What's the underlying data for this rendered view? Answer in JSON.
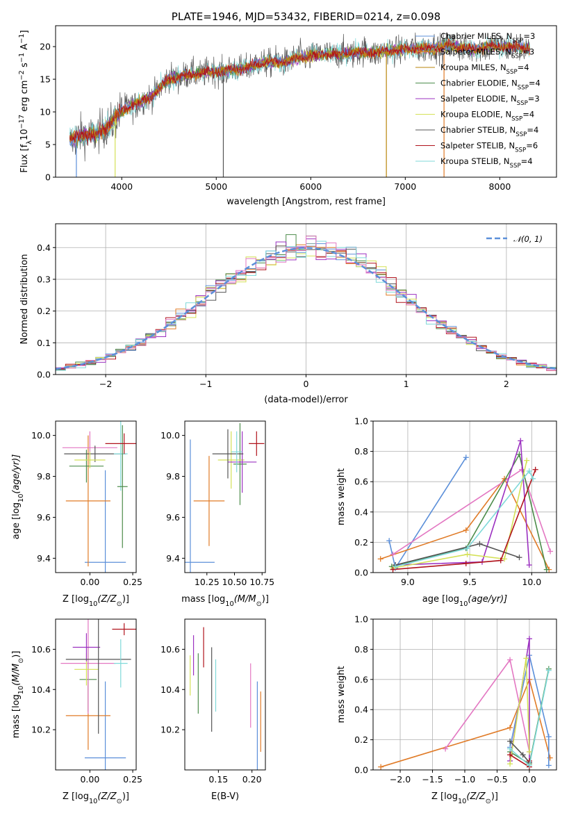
{
  "chart_data": [
    {
      "id": "spectrum",
      "type": "line",
      "title": "PLATE=1946, MJD=53432, FIBERID=0214, z=0.098",
      "xlabel": "wavelength [Angstrom, rest frame]",
      "ylabel_parts": [
        "Flux [f",
        "λ",
        "10",
        "−17",
        " erg cm",
        "−2",
        " s",
        "−1",
        " A",
        "−1",
        "]"
      ],
      "xlim": [
        3300,
        8600
      ],
      "ylim": [
        0,
        23.2
      ],
      "xticks": [
        4000,
        5000,
        6000,
        7000,
        8000
      ],
      "yticks": [
        0,
        5,
        10,
        15,
        20
      ],
      "grid": false,
      "legend_position": "top-right",
      "anchors_x": [
        3450,
        3600,
        3750,
        3900,
        4000,
        4100,
        4300,
        4500,
        4700,
        4900,
        5100,
        5300,
        5500,
        5700,
        5900,
        6100,
        6300,
        6500,
        6700,
        6900,
        7100,
        7300,
        7500,
        7700,
        7900,
        8100,
        8300
      ],
      "anchors_y": [
        5.5,
        6.5,
        6.6,
        8.5,
        10.2,
        10.9,
        12.2,
        15.1,
        15.6,
        16.1,
        16.3,
        16.7,
        17.6,
        17.6,
        18.4,
        18.8,
        18.8,
        19.2,
        19.1,
        19.5,
        19.7,
        19.8,
        20.2,
        19.5,
        20.1,
        19.9,
        19.8
      ],
      "dips": [
        {
          "x": 3520,
          "y": 0
        },
        {
          "x": 3930,
          "y": 0
        },
        {
          "x": 5075,
          "y": 0
        },
        {
          "x": 6800,
          "y": 0
        },
        {
          "x": 7410,
          "y": 0
        }
      ],
      "series": [
        {
          "name_parts": [
            "Chabrier MILES, N",
            "SSP",
            "=3"
          ],
          "color": "#5b8fd9"
        },
        {
          "name_parts": [
            "Salpeter MILES, N",
            "SSP",
            "=3"
          ],
          "color": "#e07b27"
        },
        {
          "name_parts": [
            "Kroupa MILES, N",
            "SSP",
            "=4"
          ],
          "color": "#b8860b"
        },
        {
          "name_parts": [
            "Chabrier ELODIE, N",
            "SSP",
            "=4"
          ],
          "color": "#4c8c4a"
        },
        {
          "name_parts": [
            "Salpeter ELODIE, N",
            "SSP",
            "=3"
          ],
          "color": "#9b30c0"
        },
        {
          "name_parts": [
            "Kroupa ELODIE, N",
            "SSP",
            "=4"
          ],
          "color": "#d4e157"
        },
        {
          "name_parts": [
            "Chabrier STELIB, N",
            "SSP",
            "=4"
          ],
          "color": "#555555"
        },
        {
          "name_parts": [
            "Salpeter STELIB, N",
            "SSP",
            "=6"
          ],
          "color": "#b0121b"
        },
        {
          "name_parts": [
            "Kroupa STELIB, N",
            "SSP",
            "=4"
          ],
          "color": "#7fd9d9"
        }
      ]
    },
    {
      "id": "residuals",
      "type": "histogram",
      "xlabel": "(data-model)/error",
      "ylabel": "Normed distribution",
      "xlim": [
        -2.5,
        2.5
      ],
      "ylim": [
        0,
        0.475
      ],
      "xticks": [
        -2,
        -1,
        0,
        1,
        2
      ],
      "yticks": [
        0.0,
        0.1,
        0.2,
        0.3,
        0.4
      ],
      "grid": true,
      "legend_position": "top-right",
      "legend_label": "𝒩(0, 1)",
      "bin_width": 0.1,
      "series_colors": [
        "#5b8fd9",
        "#e07b27",
        "#4c8c4a",
        "#9b30c0",
        "#d4e157",
        "#555555",
        "#b0121b",
        "#7fd9d9",
        "#e377c2"
      ],
      "gaussian_color": "#5b8fd9"
    },
    {
      "id": "age-vs-Z",
      "type": "scatter",
      "xlabel_parts": [
        "Z [log",
        "10",
        "(Z/Z",
        "⊙",
        ")]"
      ],
      "ylabel_parts": [
        "age  [log",
        "10",
        "(age/yr)]"
      ],
      "xlim": [
        -0.2,
        0.27
      ],
      "ylim": [
        9.33,
        10.07
      ],
      "xticks": [
        "0.00",
        "0.25"
      ],
      "xtick_values": [
        0.0,
        0.25
      ],
      "yticks": [
        "9.4",
        "9.6",
        "9.8",
        "10.0"
      ],
      "ytick_values": [
        9.4,
        9.6,
        9.8,
        10.0
      ],
      "points": [
        {
          "x": 0.09,
          "y": 9.38,
          "xerr": 0.12,
          "yerr": 0.45,
          "color": "#5b8fd9"
        },
        {
          "x": -0.01,
          "y": 9.68,
          "xerr": 0.13,
          "yerr": 0.32,
          "color": "#e07b27"
        },
        {
          "x": -0.02,
          "y": 9.85,
          "xerr": 0.1,
          "yerr": 0.08,
          "color": "#4c8c4a"
        },
        {
          "x": 0.0,
          "y": 9.94,
          "xerr": 0.16,
          "yerr": 0.08,
          "color": "#e377c2"
        },
        {
          "x": 0.03,
          "y": 9.91,
          "xerr": 0.18,
          "yerr": 0.04,
          "color": "#555555"
        },
        {
          "x": 0.0,
          "y": 9.88,
          "xerr": 0.09,
          "yerr": 0.04,
          "color": "#d4e157"
        },
        {
          "x": 0.18,
          "y": 9.91,
          "xerr": 0.04,
          "yerr": 0.18,
          "color": "#7fd9d9"
        },
        {
          "x": 0.19,
          "y": 9.75,
          "xerr": 0.03,
          "yerr": 0.3,
          "color": "#4c8c4a"
        },
        {
          "x": 0.2,
          "y": 9.96,
          "xerr": 0.11,
          "yerr": 0.05,
          "color": "#b0121b"
        }
      ]
    },
    {
      "id": "age-vs-mass",
      "type": "scatter",
      "xlabel_parts": [
        "mass [log",
        "10",
        "(M/M",
        "⊙",
        ")]"
      ],
      "xlim": [
        10.05,
        10.78
      ],
      "ylim": [
        9.33,
        10.07
      ],
      "xticks": [
        "10.25",
        "10.50",
        "10.75"
      ],
      "xtick_values": [
        10.25,
        10.5,
        10.75
      ],
      "yticks": [
        "9.4",
        "9.6",
        "9.8",
        "10.0"
      ],
      "ytick_values": [
        9.4,
        9.6,
        9.8,
        10.0
      ],
      "points": [
        {
          "x": 10.1,
          "y": 9.38,
          "xerr": 0.22,
          "yerr": 0.6,
          "color": "#5b8fd9"
        },
        {
          "x": 10.27,
          "y": 9.68,
          "xerr": 0.14,
          "yerr": 0.22,
          "color": "#e07b27"
        },
        {
          "x": 10.55,
          "y": 9.86,
          "xerr": 0.06,
          "yerr": 0.2,
          "color": "#4c8c4a"
        },
        {
          "x": 10.47,
          "y": 9.88,
          "xerr": 0.12,
          "yerr": 0.14,
          "color": "#d4e157"
        },
        {
          "x": 10.57,
          "y": 9.87,
          "xerr": 0.13,
          "yerr": 0.15,
          "color": "#9b30c0"
        },
        {
          "x": 10.44,
          "y": 9.91,
          "xerr": 0.14,
          "yerr": 0.12,
          "color": "#555555"
        },
        {
          "x": 10.52,
          "y": 9.92,
          "xerr": 0.05,
          "yerr": 0.1,
          "color": "#7fd9d9"
        },
        {
          "x": 10.7,
          "y": 9.96,
          "xerr": 0.07,
          "yerr": 0.06,
          "color": "#b0121b"
        }
      ]
    },
    {
      "id": "mass-weight-vs-age",
      "type": "line",
      "xlabel_parts": [
        "age  [log",
        "10",
        "(age/yr)]"
      ],
      "ylabel": "mass weight",
      "xlim": [
        8.72,
        10.2
      ],
      "ylim": [
        0,
        1.0
      ],
      "xticks": [
        "9.0",
        "9.5",
        "10.0"
      ],
      "xtick_values": [
        9.0,
        9.5,
        10.0
      ],
      "yticks": [
        "0.0",
        "0.2",
        "0.4",
        "0.6",
        "0.8",
        "1.0"
      ],
      "ytick_values": [
        0.0,
        0.2,
        0.4,
        0.6,
        0.8,
        1.0
      ],
      "grid": true,
      "series": [
        {
          "color": "#5b8fd9",
          "points": [
            [
              8.85,
              0.21
            ],
            [
              8.9,
              0.03
            ],
            [
              9.47,
              0.76
            ]
          ]
        },
        {
          "color": "#e07b27",
          "points": [
            [
              8.78,
              0.09
            ],
            [
              9.47,
              0.28
            ],
            [
              9.78,
              0.62
            ],
            [
              10.14,
              0.02
            ]
          ]
        },
        {
          "color": "#e377c2",
          "points": [
            [
              8.88,
              0.12
            ],
            [
              9.92,
              0.68
            ],
            [
              10.15,
              0.14
            ]
          ]
        },
        {
          "color": "#4c8c4a",
          "points": [
            [
              8.87,
              0.04
            ],
            [
              9.47,
              0.16
            ],
            [
              9.9,
              0.78
            ],
            [
              10.12,
              0.02
            ]
          ]
        },
        {
          "color": "#9b30c0",
          "points": [
            [
              8.9,
              0.05
            ],
            [
              9.6,
              0.07
            ],
            [
              9.91,
              0.87
            ],
            [
              9.98,
              0.05
            ]
          ]
        },
        {
          "color": "#d4e157",
          "points": [
            [
              8.88,
              0.03
            ],
            [
              9.48,
              0.12
            ],
            [
              9.78,
              0.09
            ],
            [
              9.96,
              0.74
            ]
          ]
        },
        {
          "color": "#555555",
          "points": [
            [
              8.9,
              0.05
            ],
            [
              9.58,
              0.19
            ],
            [
              9.9,
              0.1
            ]
          ]
        },
        {
          "color": "#b0121b",
          "points": [
            [
              8.88,
              0.02
            ],
            [
              9.47,
              0.06
            ],
            [
              9.75,
              0.08
            ],
            [
              10.03,
              0.68
            ]
          ]
        },
        {
          "color": "#7fd9d9",
          "points": [
            [
              8.9,
              0.04
            ],
            [
              9.48,
              0.16
            ],
            [
              9.98,
              0.67
            ],
            [
              10.01,
              0.62
            ]
          ]
        }
      ]
    },
    {
      "id": "mass-vs-Z",
      "type": "scatter",
      "xlabel_parts": [
        "Z [log",
        "10",
        "(Z/Z",
        "⊙",
        ")]"
      ],
      "ylabel_parts": [
        "mass [log",
        "10",
        "(M/M",
        "⊙",
        ")]"
      ],
      "xlim": [
        -0.2,
        0.27
      ],
      "ylim": [
        10.0,
        10.75
      ],
      "xticks": [
        "0.00",
        "0.25"
      ],
      "xtick_values": [
        0.0,
        0.25
      ],
      "yticks": [
        "10.2",
        "10.4",
        "10.6"
      ],
      "ytick_values": [
        10.2,
        10.4,
        10.6
      ],
      "points": [
        {
          "x": 0.09,
          "y": 10.06,
          "xerr": 0.12,
          "yerr": 0.38,
          "color": "#5b8fd9"
        },
        {
          "x": -0.01,
          "y": 10.27,
          "xerr": 0.13,
          "yerr": 0.17,
          "color": "#e07b27"
        },
        {
          "x": -0.01,
          "y": 10.45,
          "xerr": 0.05,
          "yerr": 0.16,
          "color": "#4c8c4a"
        },
        {
          "x": -0.01,
          "y": 10.53,
          "xerr": 0.16,
          "yerr": 0.25,
          "color": "#e377c2"
        },
        {
          "x": -0.02,
          "y": 10.5,
          "xerr": 0.07,
          "yerr": 0.08,
          "color": "#d4e157"
        },
        {
          "x": -0.02,
          "y": 10.61,
          "xerr": 0.08,
          "yerr": 0.07,
          "color": "#9b30c0"
        },
        {
          "x": 0.05,
          "y": 10.55,
          "xerr": 0.19,
          "yerr": 0.37,
          "color": "#555555"
        },
        {
          "x": 0.18,
          "y": 10.53,
          "xerr": 0.04,
          "yerr": 0.12,
          "color": "#7fd9d9"
        },
        {
          "x": 0.2,
          "y": 10.7,
          "xerr": 0.07,
          "yerr": 0.03,
          "color": "#b0121b"
        }
      ]
    },
    {
      "id": "mass-vs-EBV",
      "type": "scatter",
      "xlabel": "E(B-V)",
      "xlim": [
        0.1,
        0.22
      ],
      "ylim": [
        10.0,
        10.75
      ],
      "xticks": [
        "0.15",
        "0.20"
      ],
      "xtick_values": [
        0.15,
        0.2
      ],
      "yticks": [
        "10.2",
        "10.4",
        "10.6"
      ],
      "ytick_values": [
        10.2,
        10.4,
        10.6
      ],
      "points": [
        {
          "x": 0.108,
          "y": 10.47,
          "yerr": 0.1,
          "color": "#d4e157"
        },
        {
          "x": 0.113,
          "y": 10.57,
          "yerr": 0.1,
          "color": "#9b30c0"
        },
        {
          "x": 0.12,
          "y": 10.43,
          "yerr": 0.15,
          "color": "#4c8c4a"
        },
        {
          "x": 0.128,
          "y": 10.61,
          "yerr": 0.1,
          "color": "#b0121b"
        },
        {
          "x": 0.14,
          "y": 10.4,
          "yerr": 0.21,
          "color": "#555555"
        },
        {
          "x": 0.146,
          "y": 10.42,
          "yerr": 0.13,
          "color": "#7fd9d9"
        },
        {
          "x": 0.198,
          "y": 10.37,
          "yerr": 0.16,
          "color": "#e377c2"
        },
        {
          "x": 0.208,
          "y": 10.22,
          "yerr": 0.22,
          "color": "#5b8fd9"
        },
        {
          "x": 0.213,
          "y": 10.24,
          "yerr": 0.15,
          "color": "#e07b27"
        }
      ]
    },
    {
      "id": "mass-weight-vs-Z",
      "type": "line",
      "xlabel_parts": [
        "Z [log",
        "10",
        "(Z/Z",
        "⊙",
        ")]"
      ],
      "ylabel": "mass weight",
      "xlim": [
        -2.42,
        0.42
      ],
      "ylim": [
        0,
        1.0
      ],
      "xticks": [
        "−2.0",
        "−1.5",
        "−1.0",
        "−0.5",
        "0.0"
      ],
      "xtick_values": [
        -2.0,
        -1.5,
        -1.0,
        -0.5,
        0.0
      ],
      "yticks": [
        "0.0",
        "0.2",
        "0.4",
        "0.6",
        "0.8",
        "1.0"
      ],
      "ytick_values": [
        0.0,
        0.2,
        0.4,
        0.6,
        0.8,
        1.0
      ],
      "grid": true,
      "series": [
        {
          "color": "#e07b27",
          "points": [
            [
              -2.3,
              0.02
            ],
            [
              -0.3,
              0.28
            ],
            [
              0.0,
              0.6
            ],
            [
              0.32,
              0.08
            ]
          ]
        },
        {
          "color": "#e377c2",
          "points": [
            [
              -1.3,
              0.14
            ],
            [
              -0.3,
              0.73
            ],
            [
              0.0,
              0.12
            ]
          ]
        },
        {
          "color": "#5b8fd9",
          "points": [
            [
              -0.3,
              0.15
            ],
            [
              0.0,
              0.76
            ],
            [
              0.3,
              0.22
            ],
            [
              0.3,
              0.03
            ]
          ]
        },
        {
          "color": "#4c8c4a",
          "points": [
            [
              -0.3,
              0.12
            ],
            [
              0.0,
              0.04
            ],
            [
              0.3,
              0.67
            ]
          ]
        },
        {
          "color": "#9b30c0",
          "points": [
            [
              -0.3,
              0.06
            ],
            [
              0.0,
              0.87
            ],
            [
              0.0,
              0.05
            ]
          ]
        },
        {
          "color": "#d4e157",
          "points": [
            [
              -0.3,
              0.04
            ],
            [
              -0.05,
              0.74
            ],
            [
              0.0,
              0.12
            ]
          ]
        },
        {
          "color": "#555555",
          "points": [
            [
              -0.3,
              0.19
            ],
            [
              -0.1,
              0.1
            ],
            [
              0.0,
              0.05
            ]
          ]
        },
        {
          "color": "#b0121b",
          "points": [
            [
              -0.3,
              0.1
            ],
            [
              0.0,
              0.02
            ],
            [
              0.0,
              0.06
            ]
          ]
        },
        {
          "color": "#7fd9d9",
          "points": [
            [
              -0.3,
              0.14
            ],
            [
              0.0,
              0.03
            ],
            [
              0.3,
              0.66
            ]
          ]
        }
      ]
    }
  ]
}
